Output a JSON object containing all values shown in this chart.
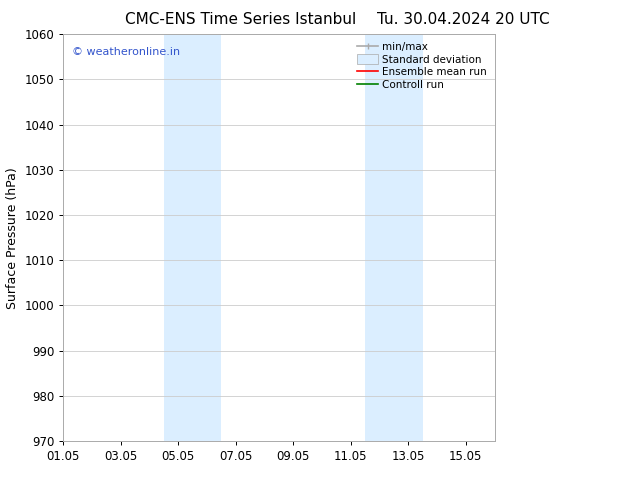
{
  "title_left": "CMC-ENS Time Series Istanbul",
  "title_right": "Tu. 30.04.2024 20 UTC",
  "ylabel": "Surface Pressure (hPa)",
  "ylim": [
    970,
    1060
  ],
  "yticks": [
    970,
    980,
    990,
    1000,
    1010,
    1020,
    1030,
    1040,
    1050,
    1060
  ],
  "xtick_labels": [
    "01.05",
    "03.05",
    "05.05",
    "07.05",
    "09.05",
    "11.05",
    "13.05",
    "15.05"
  ],
  "xtick_positions": [
    0,
    2,
    4,
    6,
    8,
    10,
    12,
    14
  ],
  "xlim": [
    0,
    15
  ],
  "shaded_regions": [
    {
      "start": 3.5,
      "end": 5.5,
      "color": "#dbeeff"
    },
    {
      "start": 10.5,
      "end": 12.5,
      "color": "#dbeeff"
    }
  ],
  "watermark": "© weatheronline.in",
  "watermark_color": "#3355cc",
  "bg_color": "#ffffff",
  "grid_color": "#cccccc",
  "title_fontsize": 11,
  "axis_label_fontsize": 9,
  "tick_fontsize": 8.5,
  "legend_fontsize": 7.5
}
